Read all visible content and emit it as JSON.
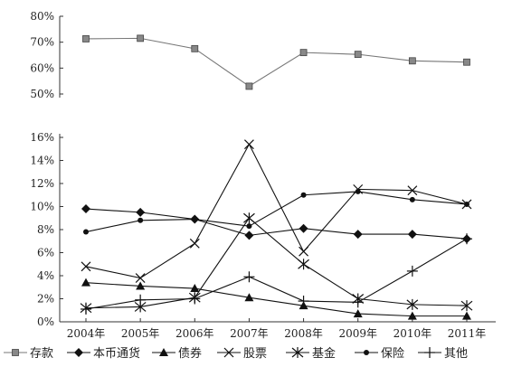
{
  "chart_data": {
    "type": "line",
    "layout": "broken-y-axis (upper panel 50%–80%, lower panel 0%–16%)",
    "categories": [
      "2004年",
      "2005年",
      "2006年",
      "2007年",
      "2008年",
      "2009年",
      "2010年",
      "2011年"
    ],
    "upper_panel": {
      "ylim": [
        50,
        80
      ],
      "ticks": [
        "50%",
        "60%",
        "70%",
        "80%"
      ],
      "series": [
        {
          "name": "存款",
          "marker": "square",
          "values": [
            71.3,
            71.5,
            67.5,
            53.0,
            66.0,
            65.3,
            62.8,
            62.3
          ]
        }
      ]
    },
    "lower_panel": {
      "ylim": [
        0,
        16
      ],
      "ticks": [
        "0%",
        "2%",
        "4%",
        "6%",
        "8%",
        "10%",
        "12%",
        "14%",
        "16%"
      ],
      "series": [
        {
          "name": "本币通货",
          "marker": "diamond",
          "values": [
            9.8,
            9.5,
            8.9,
            7.5,
            8.1,
            7.6,
            7.6,
            7.2
          ]
        },
        {
          "name": "债券",
          "marker": "triangle",
          "values": [
            3.4,
            3.1,
            2.9,
            2.1,
            1.4,
            0.7,
            0.5,
            0.5
          ]
        },
        {
          "name": "股票",
          "marker": "x",
          "values": [
            4.8,
            3.8,
            6.8,
            15.4,
            6.1,
            11.5,
            11.4,
            10.2
          ]
        },
        {
          "name": "基金",
          "marker": "asterisk",
          "values": [
            1.2,
            1.3,
            2.1,
            9.0,
            5.0,
            2.0,
            1.5,
            1.4
          ]
        },
        {
          "name": "保险",
          "marker": "dot",
          "values": [
            7.8,
            8.8,
            8.9,
            8.3,
            11.0,
            11.3,
            10.6,
            10.2
          ]
        },
        {
          "name": "其他",
          "marker": "plus",
          "values": [
            1.1,
            1.9,
            2.0,
            3.9,
            1.8,
            1.7,
            4.4,
            7.2
          ]
        }
      ]
    },
    "legend": {
      "placement": "bottom"
    }
  }
}
